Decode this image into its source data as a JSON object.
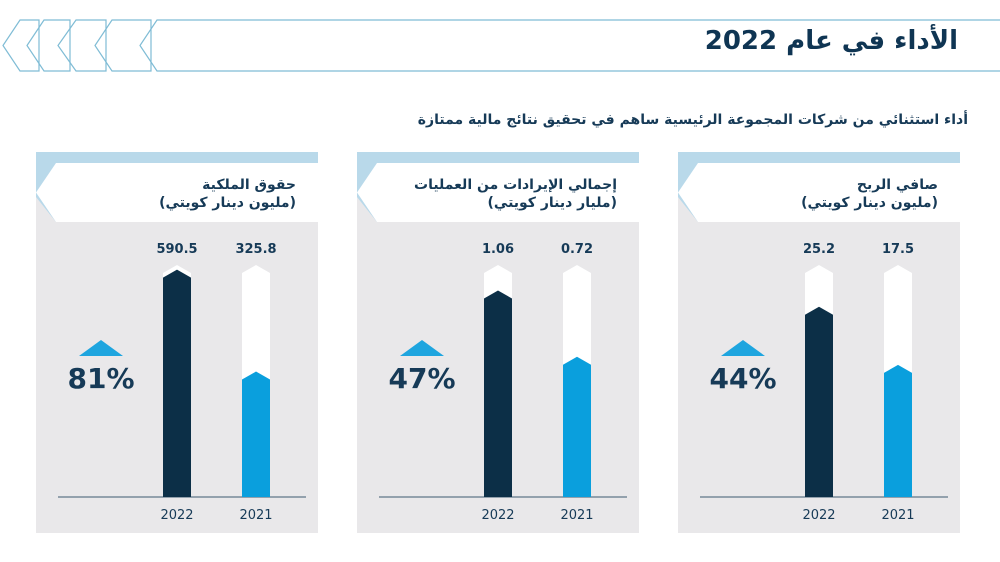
{
  "header": {
    "title": "الأداء في عام 2022",
    "subtitle": "أداء استثنائي من شركات المجموعة الرئيسية ساهم في تحقيق نتائج مالية ممتازة"
  },
  "colors": {
    "frame_line": "#7fbcd5",
    "panel_bg": "#e9e8ea",
    "panel_strip": "#b9d9ea",
    "bar_2022": "#0c2f47",
    "bar_2021": "#0a9fdd",
    "bar_track": "#ffffff",
    "text": "#163a57",
    "arrow": "#1ea5df"
  },
  "chart_data": [
    {
      "type": "bar",
      "title": "حقوق الملكية",
      "unit": "(مليون دينار كويتي)",
      "categories": [
        "2022",
        "2021"
      ],
      "values": [
        590.5,
        325.8
      ],
      "value_labels": [
        "590.5",
        "325.8"
      ],
      "growth": "81%",
      "growth_direction": "up"
    },
    {
      "type": "bar",
      "title": "إجمالي الإيرادات من العمليات",
      "unit": "(مليار دينار كويتي)",
      "categories": [
        "2022",
        "2021"
      ],
      "values": [
        1.06,
        0.72
      ],
      "value_labels": [
        "1.06",
        "0.72"
      ],
      "growth": "47%",
      "growth_direction": "up"
    },
    {
      "type": "bar",
      "title": "صافي الربح",
      "unit": "(مليون دينار كويتي)",
      "categories": [
        "2022",
        "2021"
      ],
      "values": [
        25.2,
        17.5
      ],
      "value_labels": [
        "25.2",
        "17.5"
      ],
      "growth": "44%",
      "growth_direction": "up"
    }
  ]
}
